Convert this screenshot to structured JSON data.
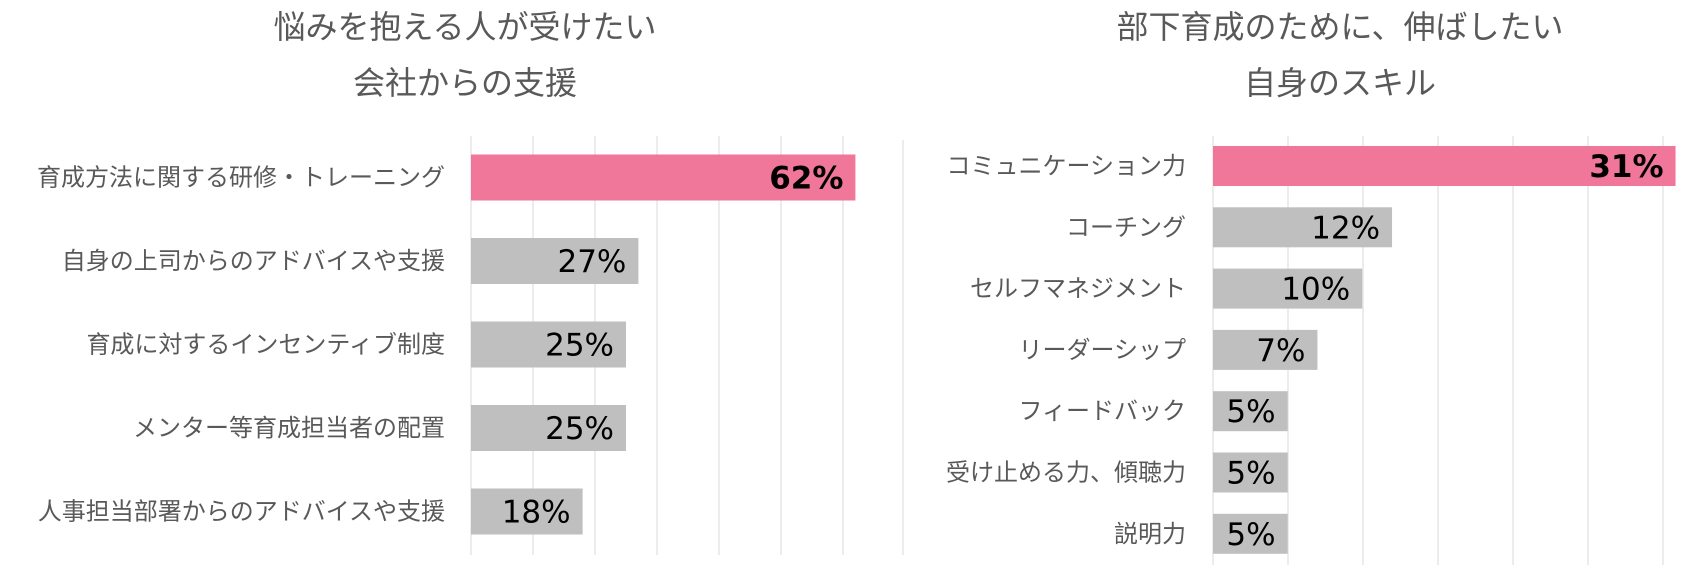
{
  "colors": {
    "highlight": "#f0779a",
    "bar": "#bfbfbf",
    "grid": "#d9d9d9",
    "text": "#595959"
  },
  "chart_data": [
    {
      "type": "bar",
      "orientation": "horizontal",
      "title_lines": [
        "悩みを抱える人が受けたい",
        "会社からの支援"
      ],
      "categories": [
        "育成方法に関する研修・トレーニング",
        "自身の上司からのアドバイスや支援",
        "育成に対するインセンティブ制度",
        "メンター等育成担当者の配置",
        "人事担当部署からのアドバイスや支援"
      ],
      "values": [
        62,
        27,
        25,
        25,
        18
      ],
      "value_labels": [
        "62%",
        "27%",
        "25%",
        "25%",
        "18%"
      ],
      "highlight_index": 0,
      "unit": "%",
      "xlim": [
        0,
        70
      ],
      "grid": true
    },
    {
      "type": "bar",
      "orientation": "horizontal",
      "title_lines": [
        "部下育成のために、伸ばしたい",
        "自身のスキル"
      ],
      "categories": [
        "コミュニケーション力",
        "コーチング",
        "セルフマネジメント",
        "リーダーシップ",
        "フィードバック",
        "受け止める力、傾聴力",
        "説明力"
      ],
      "values": [
        31,
        12,
        10,
        7,
        5,
        5,
        5
      ],
      "value_labels": [
        "31%",
        "12%",
        "10%",
        "7%",
        "5%",
        "5%",
        "5%"
      ],
      "highlight_index": 0,
      "unit": "%",
      "xlim": [
        0,
        31.5
      ],
      "grid": true
    }
  ]
}
